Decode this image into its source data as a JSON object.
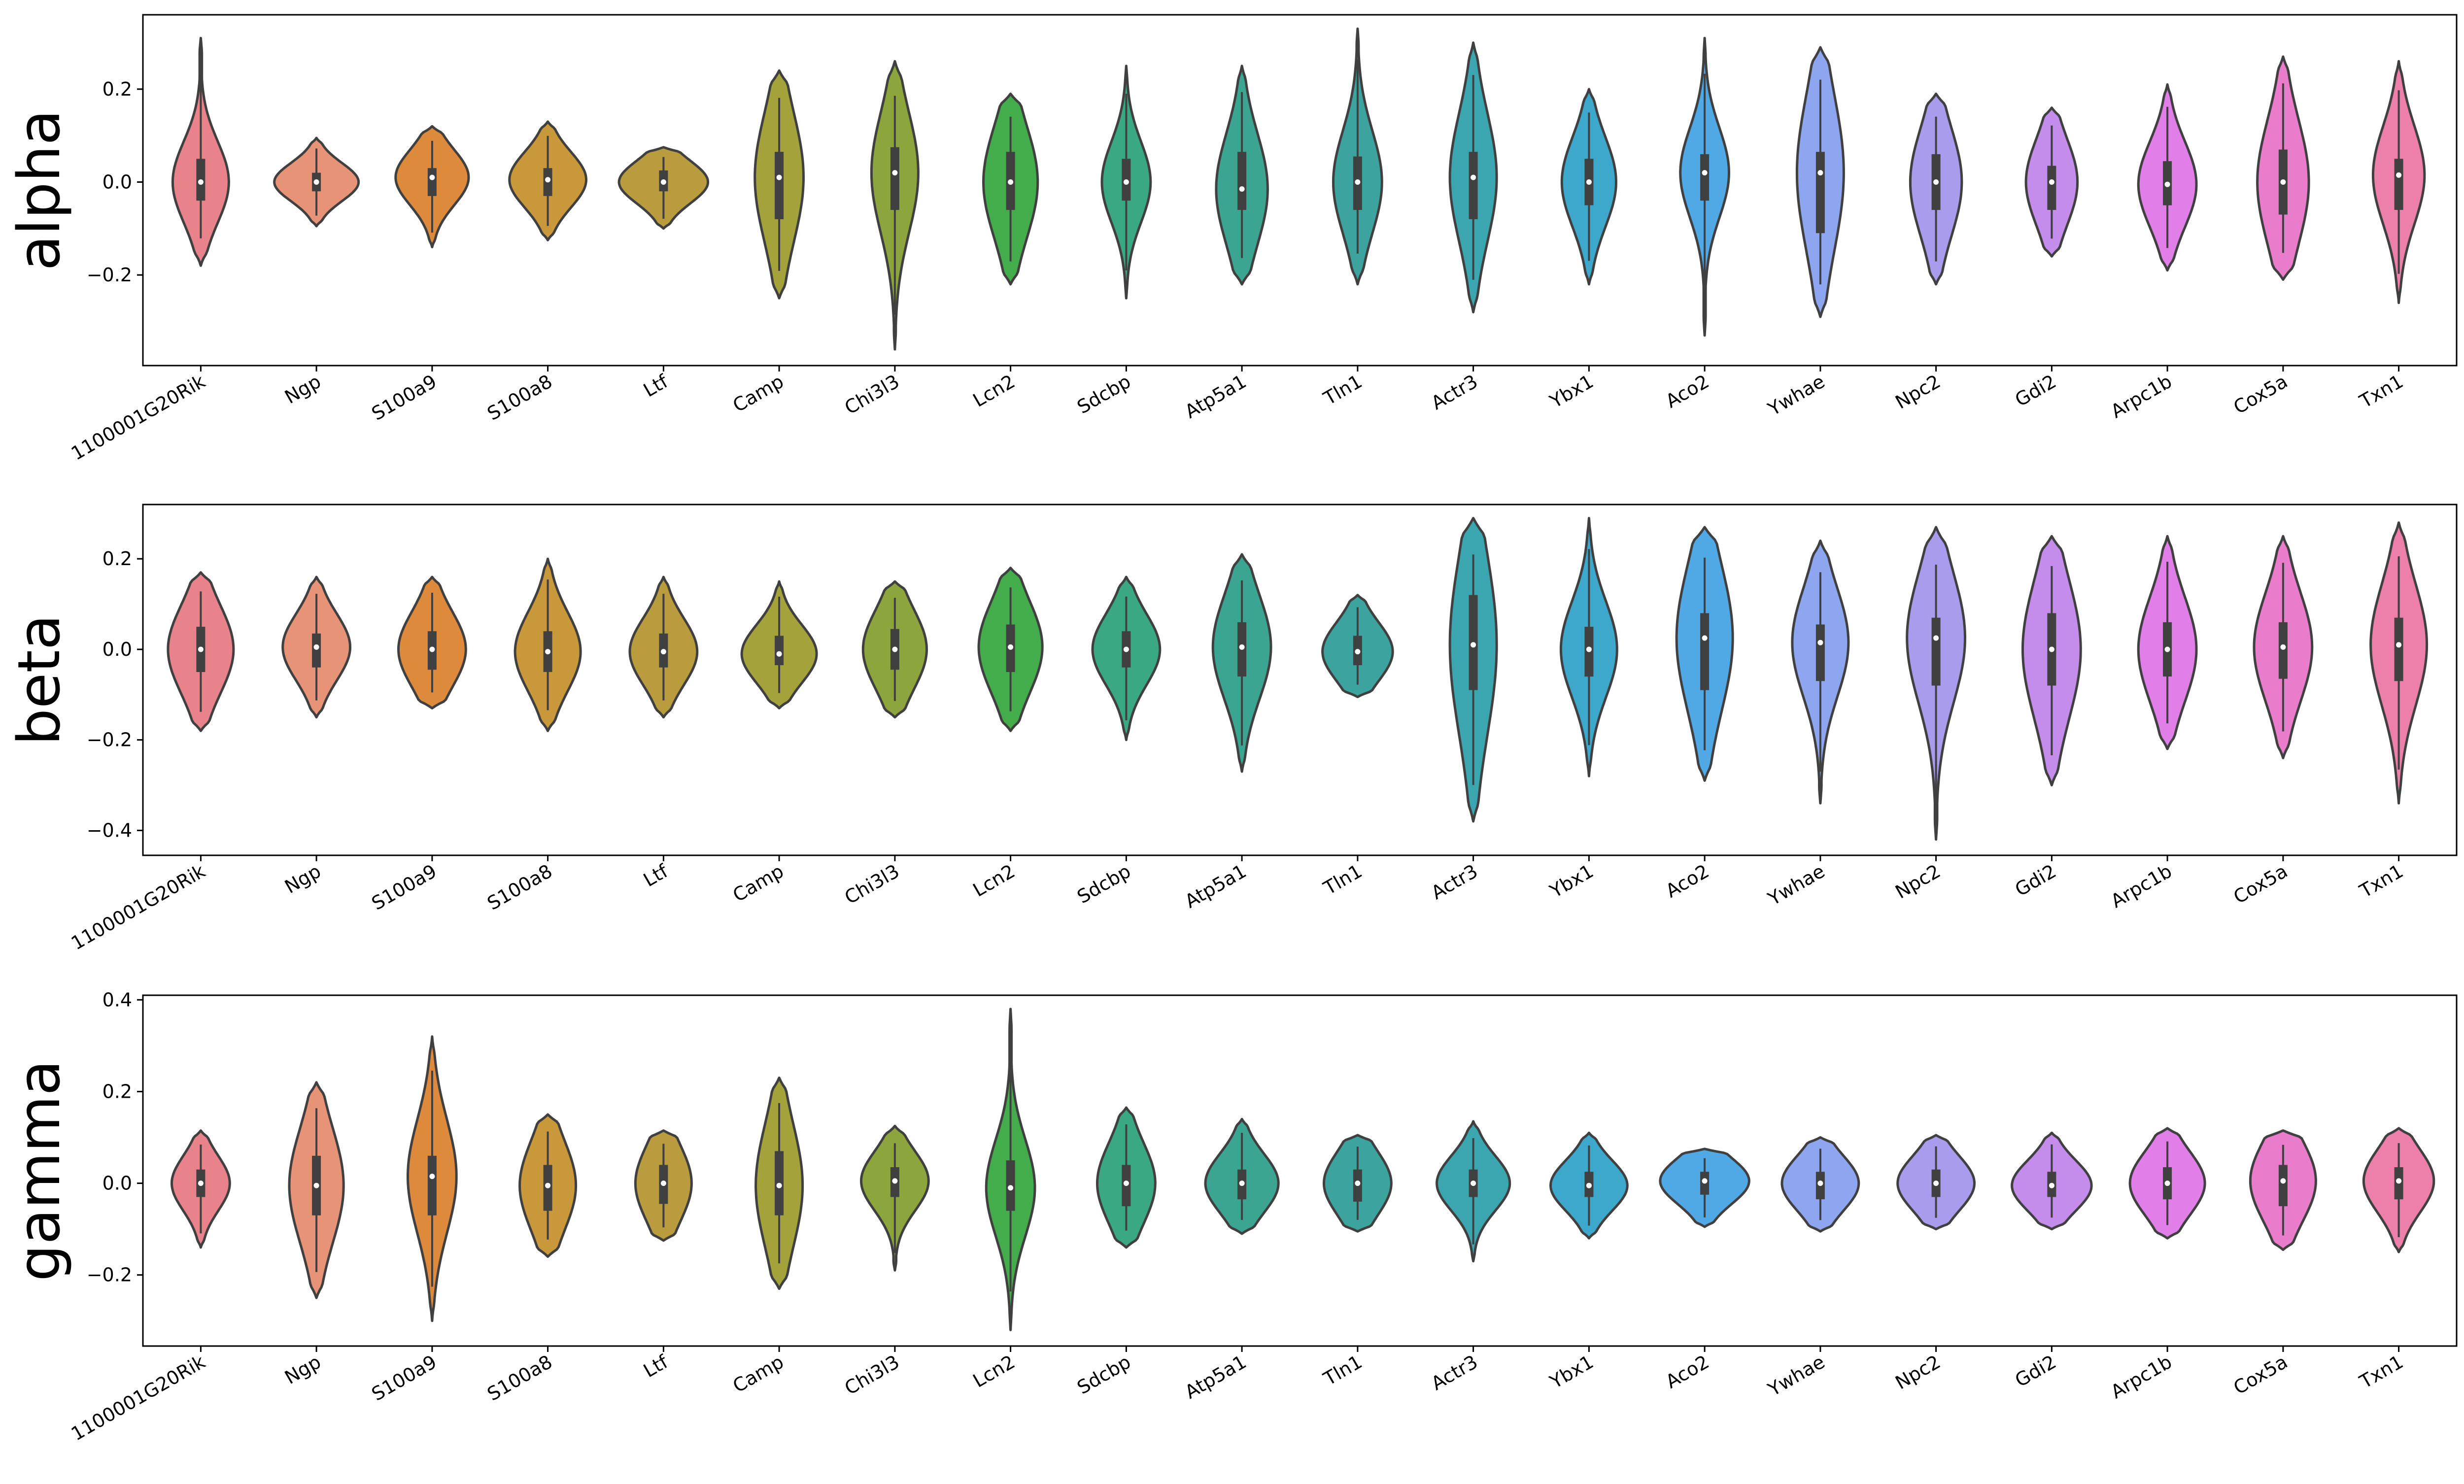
{
  "chart_data": [
    {
      "type": "violin",
      "ylabel": "alpha",
      "ylim": [
        -0.395,
        0.36
      ],
      "yticks": [
        -0.2,
        0.0,
        0.2
      ],
      "ytick_labels": [
        "−0.2",
        "0.0",
        "0.2"
      ],
      "categories": [
        "1100001G20Rik",
        "Ngp",
        "S100a9",
        "S100a8",
        "Ltf",
        "Camp",
        "Chi3l3",
        "Lcn2",
        "Sdcbp",
        "Atp5a1",
        "Tln1",
        "Actr3",
        "Ybx1",
        "Aco2",
        "Ywhae",
        "Npc2",
        "Gdi2",
        "Arpc1b",
        "Cox5a",
        "Txn1"
      ],
      "violins": [
        {
          "min": -0.18,
          "max": 0.31,
          "q1": -0.04,
          "median": 0.0,
          "q3": 0.05,
          "width": 0.6
        },
        {
          "min": -0.095,
          "max": 0.095,
          "q1": -0.02,
          "median": 0.0,
          "q3": 0.02,
          "width": 0.9
        },
        {
          "min": -0.14,
          "max": 0.12,
          "q1": -0.03,
          "median": 0.01,
          "q3": 0.03,
          "width": 0.78
        },
        {
          "min": -0.125,
          "max": 0.13,
          "q1": -0.03,
          "median": 0.005,
          "q3": 0.03,
          "width": 0.82
        },
        {
          "min": -0.1,
          "max": 0.075,
          "q1": -0.02,
          "median": 0.0,
          "q3": 0.025,
          "width": 0.95
        },
        {
          "min": -0.25,
          "max": 0.24,
          "q1": -0.08,
          "median": 0.01,
          "q3": 0.065,
          "width": 0.52
        },
        {
          "min": -0.36,
          "max": 0.26,
          "q1": -0.06,
          "median": 0.02,
          "q3": 0.075,
          "width": 0.5
        },
        {
          "min": -0.22,
          "max": 0.19,
          "q1": -0.06,
          "median": 0.0,
          "q3": 0.065,
          "width": 0.58
        },
        {
          "min": -0.25,
          "max": 0.25,
          "q1": -0.04,
          "median": 0.0,
          "q3": 0.05,
          "width": 0.52
        },
        {
          "min": -0.22,
          "max": 0.25,
          "q1": -0.06,
          "median": -0.015,
          "q3": 0.065,
          "width": 0.55
        },
        {
          "min": -0.22,
          "max": 0.33,
          "q1": -0.06,
          "median": 0.0,
          "q3": 0.055,
          "width": 0.52
        },
        {
          "min": -0.28,
          "max": 0.3,
          "q1": -0.08,
          "median": 0.01,
          "q3": 0.065,
          "width": 0.5
        },
        {
          "min": -0.22,
          "max": 0.2,
          "q1": -0.05,
          "median": 0.0,
          "q3": 0.05,
          "width": 0.58
        },
        {
          "min": -0.33,
          "max": 0.31,
          "q1": -0.04,
          "median": 0.02,
          "q3": 0.06,
          "width": 0.52
        },
        {
          "min": -0.29,
          "max": 0.29,
          "q1": -0.11,
          "median": 0.02,
          "q3": 0.065,
          "width": 0.5
        },
        {
          "min": -0.22,
          "max": 0.19,
          "q1": -0.06,
          "median": 0.0,
          "q3": 0.06,
          "width": 0.55
        },
        {
          "min": -0.16,
          "max": 0.16,
          "q1": -0.06,
          "median": 0.0,
          "q3": 0.035,
          "width": 0.55
        },
        {
          "min": -0.19,
          "max": 0.21,
          "q1": -0.05,
          "median": -0.005,
          "q3": 0.045,
          "width": 0.62
        },
        {
          "min": -0.21,
          "max": 0.27,
          "q1": -0.07,
          "median": 0.0,
          "q3": 0.07,
          "width": 0.55
        },
        {
          "min": -0.26,
          "max": 0.26,
          "q1": -0.06,
          "median": 0.015,
          "q3": 0.05,
          "width": 0.55
        }
      ]
    },
    {
      "type": "violin",
      "ylabel": "beta",
      "ylim": [
        -0.455,
        0.32
      ],
      "yticks": [
        -0.4,
        -0.2,
        0.0,
        0.2
      ],
      "ytick_labels": [
        "−0.4",
        "−0.2",
        "0.0",
        "0.2"
      ],
      "categories": [
        "1100001G20Rik",
        "Ngp",
        "S100a9",
        "S100a8",
        "Ltf",
        "Camp",
        "Chi3l3",
        "Lcn2",
        "Sdcbp",
        "Atp5a1",
        "Tln1",
        "Actr3",
        "Ybx1",
        "Aco2",
        "Ywhae",
        "Npc2",
        "Gdi2",
        "Arpc1b",
        "Cox5a",
        "Txn1"
      ],
      "violins": [
        {
          "min": -0.18,
          "max": 0.17,
          "q1": -0.05,
          "median": 0.0,
          "q3": 0.05,
          "width": 0.7
        },
        {
          "min": -0.15,
          "max": 0.16,
          "q1": -0.04,
          "median": 0.005,
          "q3": 0.035,
          "width": 0.72
        },
        {
          "min": -0.13,
          "max": 0.16,
          "q1": -0.045,
          "median": 0.0,
          "q3": 0.04,
          "width": 0.72
        },
        {
          "min": -0.18,
          "max": 0.2,
          "q1": -0.05,
          "median": -0.005,
          "q3": 0.04,
          "width": 0.7
        },
        {
          "min": -0.15,
          "max": 0.16,
          "q1": -0.04,
          "median": -0.005,
          "q3": 0.035,
          "width": 0.72
        },
        {
          "min": -0.13,
          "max": 0.15,
          "q1": -0.035,
          "median": -0.01,
          "q3": 0.03,
          "width": 0.8
        },
        {
          "min": -0.15,
          "max": 0.15,
          "q1": -0.045,
          "median": 0.0,
          "q3": 0.045,
          "width": 0.68
        },
        {
          "min": -0.18,
          "max": 0.18,
          "q1": -0.05,
          "median": 0.005,
          "q3": 0.055,
          "width": 0.68
        },
        {
          "min": -0.2,
          "max": 0.16,
          "q1": -0.04,
          "median": 0.0,
          "q3": 0.04,
          "width": 0.72
        },
        {
          "min": -0.27,
          "max": 0.21,
          "q1": -0.06,
          "median": 0.005,
          "q3": 0.06,
          "width": 0.62
        },
        {
          "min": -0.105,
          "max": 0.12,
          "q1": -0.035,
          "median": -0.005,
          "q3": 0.03,
          "width": 0.75
        },
        {
          "min": -0.38,
          "max": 0.29,
          "q1": -0.09,
          "median": 0.01,
          "q3": 0.12,
          "width": 0.5
        },
        {
          "min": -0.28,
          "max": 0.29,
          "q1": -0.06,
          "median": 0.0,
          "q3": 0.05,
          "width": 0.6
        },
        {
          "min": -0.29,
          "max": 0.27,
          "q1": -0.09,
          "median": 0.025,
          "q3": 0.08,
          "width": 0.6
        },
        {
          "min": -0.34,
          "max": 0.24,
          "q1": -0.07,
          "median": 0.015,
          "q3": 0.055,
          "width": 0.6
        },
        {
          "min": -0.42,
          "max": 0.27,
          "q1": -0.08,
          "median": 0.025,
          "q3": 0.07,
          "width": 0.62
        },
        {
          "min": -0.3,
          "max": 0.25,
          "q1": -0.08,
          "median": 0.0,
          "q3": 0.08,
          "width": 0.62
        },
        {
          "min": -0.22,
          "max": 0.25,
          "q1": -0.06,
          "median": 0.0,
          "q3": 0.06,
          "width": 0.62
        },
        {
          "min": -0.24,
          "max": 0.25,
          "q1": -0.065,
          "median": 0.005,
          "q3": 0.06,
          "width": 0.62
        },
        {
          "min": -0.34,
          "max": 0.28,
          "q1": -0.07,
          "median": 0.01,
          "q3": 0.07,
          "width": 0.6
        }
      ]
    },
    {
      "type": "violin",
      "ylabel": "gamma",
      "ylim": [
        -0.355,
        0.41
      ],
      "yticks": [
        -0.2,
        0.0,
        0.2,
        0.4
      ],
      "ytick_labels": [
        "−0.2",
        "0.0",
        "0.2",
        "0.4"
      ],
      "categories": [
        "1100001G20Rik",
        "Ngp",
        "S100a9",
        "S100a8",
        "Ltf",
        "Camp",
        "Chi3l3",
        "Lcn2",
        "Sdcbp",
        "Atp5a1",
        "Tln1",
        "Actr3",
        "Ybx1",
        "Aco2",
        "Ywhae",
        "Npc2",
        "Gdi2",
        "Arpc1b",
        "Cox5a",
        "Txn1"
      ],
      "violins": [
        {
          "min": -0.14,
          "max": 0.115,
          "q1": -0.03,
          "median": 0.0,
          "q3": 0.03,
          "width": 0.62
        },
        {
          "min": -0.25,
          "max": 0.22,
          "q1": -0.07,
          "median": -0.005,
          "q3": 0.06,
          "width": 0.58
        },
        {
          "min": -0.3,
          "max": 0.32,
          "q1": -0.07,
          "median": 0.015,
          "q3": 0.06,
          "width": 0.52
        },
        {
          "min": -0.16,
          "max": 0.15,
          "q1": -0.06,
          "median": -0.005,
          "q3": 0.04,
          "width": 0.6
        },
        {
          "min": -0.125,
          "max": 0.115,
          "q1": -0.045,
          "median": 0.0,
          "q3": 0.04,
          "width": 0.6
        },
        {
          "min": -0.23,
          "max": 0.23,
          "q1": -0.07,
          "median": -0.005,
          "q3": 0.07,
          "width": 0.5
        },
        {
          "min": -0.19,
          "max": 0.125,
          "q1": -0.03,
          "median": 0.005,
          "q3": 0.035,
          "width": 0.72
        },
        {
          "min": -0.32,
          "max": 0.38,
          "q1": -0.06,
          "median": -0.01,
          "q3": 0.05,
          "width": 0.52
        },
        {
          "min": -0.14,
          "max": 0.165,
          "q1": -0.05,
          "median": 0.0,
          "q3": 0.04,
          "width": 0.62
        },
        {
          "min": -0.11,
          "max": 0.14,
          "q1": -0.035,
          "median": 0.0,
          "q3": 0.03,
          "width": 0.78
        },
        {
          "min": -0.105,
          "max": 0.105,
          "q1": -0.04,
          "median": 0.0,
          "q3": 0.03,
          "width": 0.72
        },
        {
          "min": -0.17,
          "max": 0.135,
          "q1": -0.03,
          "median": 0.0,
          "q3": 0.03,
          "width": 0.78
        },
        {
          "min": -0.12,
          "max": 0.11,
          "q1": -0.03,
          "median": -0.005,
          "q3": 0.025,
          "width": 0.82
        },
        {
          "min": -0.095,
          "max": 0.075,
          "q1": -0.025,
          "median": 0.005,
          "q3": 0.025,
          "width": 0.95
        },
        {
          "min": -0.105,
          "max": 0.1,
          "q1": -0.035,
          "median": 0.0,
          "q3": 0.025,
          "width": 0.82
        },
        {
          "min": -0.1,
          "max": 0.105,
          "q1": -0.03,
          "median": 0.0,
          "q3": 0.03,
          "width": 0.82
        },
        {
          "min": -0.1,
          "max": 0.11,
          "q1": -0.03,
          "median": -0.005,
          "q3": 0.025,
          "width": 0.85
        },
        {
          "min": -0.12,
          "max": 0.12,
          "q1": -0.035,
          "median": 0.0,
          "q3": 0.035,
          "width": 0.8
        },
        {
          "min": -0.145,
          "max": 0.115,
          "q1": -0.05,
          "median": 0.005,
          "q3": 0.04,
          "width": 0.7
        },
        {
          "min": -0.15,
          "max": 0.12,
          "q1": -0.035,
          "median": 0.005,
          "q3": 0.035,
          "width": 0.75
        }
      ]
    }
  ],
  "colors": [
    "#e8828b",
    "#e69378",
    "#dd8a3d",
    "#c9983b",
    "#b99c3e",
    "#a3a23b",
    "#8ca53c",
    "#43ad4c",
    "#3aa882",
    "#3ba591",
    "#3ca39e",
    "#3ca6b0",
    "#3ea8cc",
    "#50a9e5",
    "#8ea6ef",
    "#a99cec",
    "#c48ceb",
    "#e17fe8",
    "#ea7dcb",
    "#ec80aa"
  ],
  "edge_color": "#404040"
}
